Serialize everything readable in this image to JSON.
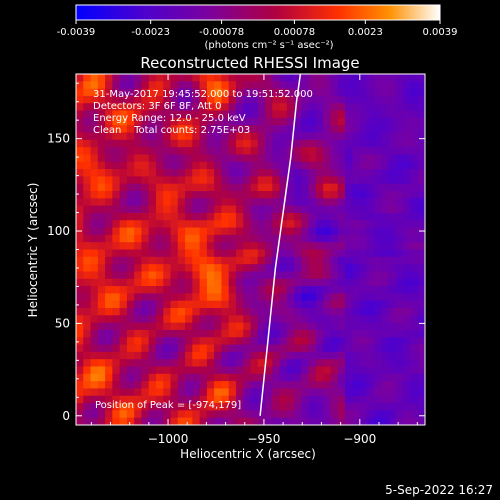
{
  "colorbar": {
    "ticks": [
      "-0.0039",
      "-0.0023",
      "-0.00078",
      "0.00078",
      "0.0023",
      "0.0039"
    ],
    "tick_values": [
      -0.0039,
      -0.0023,
      -0.00078,
      0.00078,
      0.0023,
      0.0039
    ],
    "range": [
      -0.0039,
      0.0039
    ],
    "units_label": "(photons cm⁻² s⁻¹ asec⁻²)",
    "stops": [
      "#0000ff",
      "#4b00d0",
      "#7a00a0",
      "#b00040",
      "#ff3000",
      "#ff9000",
      "#ffffff"
    ]
  },
  "chart_data": {
    "type": "heatmap",
    "title": "Reconstructed RHESSI Image",
    "xlabel": "Heliocentric X (arcsec)",
    "ylabel": "Heliocentric Y (arcsec)",
    "xlim": [
      -1048,
      -866
    ],
    "ylim": [
      -5,
      185
    ],
    "x_ticks": [
      -1000,
      -950,
      -900
    ],
    "x_tick_labels": [
      "−1000",
      "−950",
      "−900"
    ],
    "y_ticks": [
      0,
      50,
      100,
      150
    ],
    "y_tick_labels": [
      "0",
      "50",
      "100",
      "150"
    ],
    "info_lines": [
      "31-May-2017 19:45:52.000 to 19:51:52.000",
      "Detectors: 3F 6F 8F, Att 0",
      "Energy Range: 12.0 - 25.0 keV",
      "Clean    Total counts: 2.75E+03"
    ],
    "peak_label": "Position of Peak = [-974,179]",
    "peak": [
      -974,
      179
    ],
    "limb_curve": [
      [
        -952,
        0
      ],
      [
        -948,
        40
      ],
      [
        -944,
        80
      ],
      [
        -940,
        110
      ],
      [
        -936,
        140
      ],
      [
        -933,
        170
      ],
      [
        -931,
        185
      ]
    ]
  },
  "footer_date": "5-Sep-2022 16:27"
}
